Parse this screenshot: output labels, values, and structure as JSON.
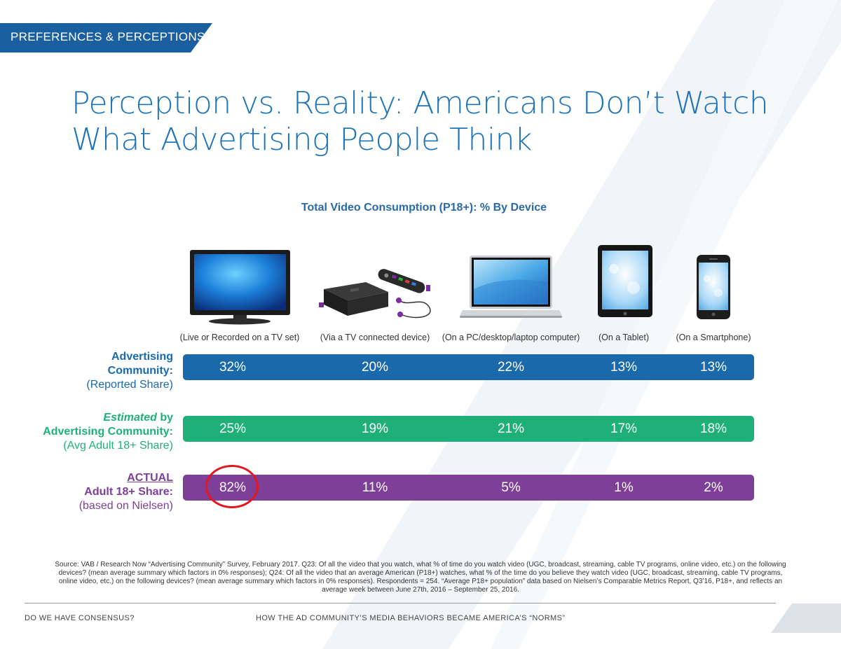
{
  "section_tag": "PREFERENCES & PERCEPTIONS",
  "title_lines": [
    "Perception vs. Reality: Americans Don’t Watch",
    "What Advertising People Think"
  ],
  "devices": [
    {
      "label": "(Live or Recorded on a TV set)",
      "icon": "tv-icon"
    },
    {
      "label": "(Via a TV connected device)",
      "icon": "streaming-box-icon"
    },
    {
      "label": "(On a PC/desktop/laptop computer)",
      "icon": "laptop-icon"
    },
    {
      "label": "(On a Tablet)",
      "icon": "tablet-icon"
    },
    {
      "label": "(On a Smartphone)",
      "icon": "smartphone-icon"
    }
  ],
  "rows": [
    {
      "label_line1": "Advertising",
      "label_line1_prefix": "",
      "label_line2": "Community:",
      "label_line3": "(Reported Share)"
    },
    {
      "label_line1": " by",
      "label_line1_prefix": "Estimated",
      "label_line2": "Advertising Community:",
      "label_line3": "(Avg Adult 18+ Share)"
    },
    {
      "label_line1": "ACTUAL",
      "label_line1_prefix": "",
      "label_line2": "Adult 18+ Share:",
      "label_line3": "(based on Nielsen)"
    }
  ],
  "chart_data": {
    "type": "table",
    "title": "Total Video Consumption (P18+): % By Device",
    "categories": [
      "(Live or Recorded on a TV set)",
      "(Via a TV connected device)",
      "(On a PC/desktop/laptop computer)",
      "(On a Tablet)",
      "(On a Smartphone)"
    ],
    "series": [
      {
        "name": "Advertising Community: (Reported Share)",
        "values": [
          32,
          20,
          22,
          13,
          13
        ],
        "display": [
          "32%",
          "20%",
          "22%",
          "13%",
          "13%"
        ],
        "color": "#1a6aab"
      },
      {
        "name": "Estimated by Advertising Community: (Avg Adult 18+ Share)",
        "values": [
          25,
          19,
          21,
          17,
          18
        ],
        "display": [
          "25%",
          "19%",
          "21%",
          "17%",
          "18%"
        ],
        "color": "#1fb07a"
      },
      {
        "name": "ACTUAL Adult 18+ Share: (based on Nielsen)",
        "values": [
          82,
          11,
          5,
          1,
          2
        ],
        "display": [
          "82%",
          "11%",
          "5%",
          "1%",
          "2%"
        ],
        "color": "#7d3f98"
      }
    ],
    "highlight": {
      "series": 2,
      "index": 0,
      "color": "#e3181f"
    }
  },
  "colors": {
    "title": "#1f74b8",
    "banner": "#1a5fa0",
    "row1_label": "#1a6aab",
    "row2_label": "#1fb07a",
    "row3_label": "#7d3f98"
  },
  "source": "Source: VAB / Research Now “Advertising Community” Survey, February 2017. Q23: Of all the video that you watch, what % of time do you watch video (UGC, broadcast, streaming, cable TV programs, online video, etc.) on the following devices? (mean average summary which factors in 0% responses); Q24: Of all the video that an average American (P18+) watches, what % of the time do you believe they watch video (UGC, broadcast, streaming, cable TV programs, online video, etc.) on the following devices? (mean average summary which factors in 0% responses). Respondents = 254. “Average P18+ population” data based on Nielsen’s Comparable Metrics Report, Q3’16, P18+, and reflects an average week between June 27th, 2016 – September 25, 2016.",
  "footer": {
    "left": "DO WE HAVE CONSENSUS?",
    "center": "HOW THE AD COMMUNITY’S MEDIA BEHAVIORS BECAME AMERICA’S “NORMS”"
  }
}
